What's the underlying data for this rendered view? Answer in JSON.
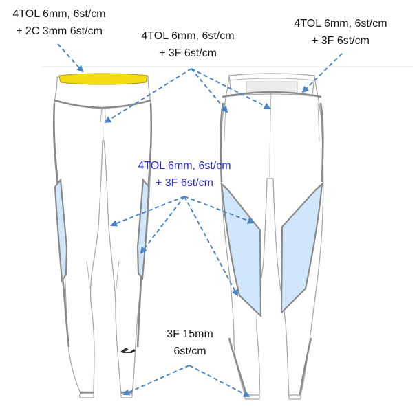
{
  "annotations": [
    {
      "id": "waistband-yellow",
      "lines": [
        "4TOL 6mm, 6st/cm",
        "+ 2C 3mm 6st/cm"
      ],
      "color": "#1a1a1a"
    },
    {
      "id": "front-seams",
      "lines": [
        "4TOL 6mm, 6st/cm",
        "+ 3F 6st/cm"
      ],
      "color": "#1a1a1a"
    },
    {
      "id": "back-waistband",
      "lines": [
        "4TOL 6mm, 6st/cm",
        "+ 3F 6st/cm"
      ],
      "color": "#1a1a1a"
    },
    {
      "id": "mesh-panels",
      "lines": [
        "4TOL 6mm, 6st/cm",
        "+ 3F 6st/cm"
      ],
      "color": "#2a2ae0"
    },
    {
      "id": "hems",
      "lines": [
        "3F 15mm",
        "6st/cm"
      ],
      "color": "#1a1a1a"
    }
  ],
  "colors": {
    "arrow": "#4a86c8",
    "mesh_panel": "#cfe6fb",
    "waistband_highlight": "#f2dc14",
    "seam": "#8a8a8a",
    "outline": "#a8a8a8"
  },
  "icons": [
    "reebok-logo-icon"
  ]
}
